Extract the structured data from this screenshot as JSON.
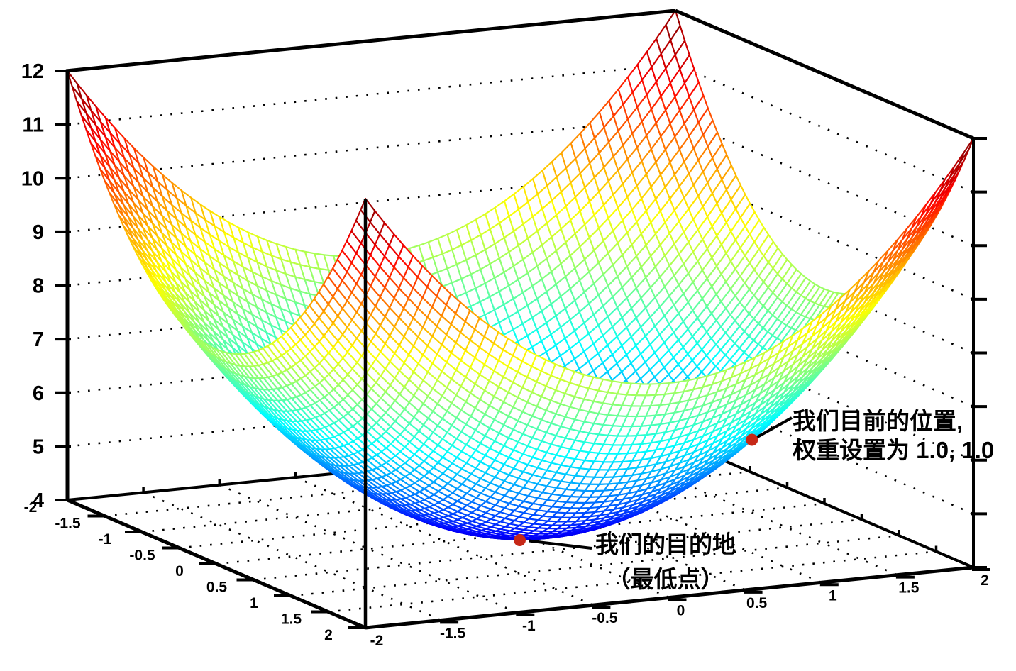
{
  "chart_data": {
    "type": "surface",
    "title": "",
    "surface": {
      "formula": "z = 4 + x^2 + y^2",
      "z_min": 4,
      "grid_divisions": 64,
      "colormap": "jet (blue = low z, red = high z)",
      "style": "hidden-line wireframe with white faces",
      "face_color": "#ffffff"
    },
    "x_axis": {
      "range": [
        -2,
        2
      ],
      "tick_values": [
        -2,
        -1.5,
        -1,
        -0.5,
        0,
        0.5,
        1,
        1.5,
        2
      ],
      "tick_labels": [
        "-2",
        "-1.5",
        "-1",
        "-0.5",
        "0",
        "0.5",
        "1",
        "1.5",
        "2"
      ]
    },
    "y_axis": {
      "range": [
        -2,
        2
      ],
      "tick_values": [
        -2,
        -1.5,
        -1,
        -0.5,
        0,
        0.5,
        1,
        1.5,
        2
      ],
      "tick_labels": [
        "-2",
        "-1.5",
        "-1",
        "-0.5",
        "0",
        "0.5",
        "1",
        "1.5",
        "2"
      ]
    },
    "z_axis": {
      "range": [
        4,
        12
      ],
      "tick_values": [
        4,
        5,
        6,
        7,
        8,
        9,
        10,
        11,
        12
      ],
      "tick_labels": [
        "4",
        "5",
        "6",
        "7",
        "8",
        "9",
        "10",
        "11",
        "12"
      ]
    },
    "grid": "dotted",
    "background": "#ffffff",
    "axis_color": "#000000",
    "markers": [
      {
        "id": "current-position",
        "x": 1.0,
        "y": 1.0,
        "z": 6.0,
        "label_lines": [
          "我们目前的位置,",
          "权重设置为 1.0, 1.0"
        ],
        "color": "#c62817"
      },
      {
        "id": "destination",
        "x": 0.0,
        "y": 0.0,
        "z": 4.0,
        "label_lines": [
          "我们的目的地",
          "（最低点）"
        ],
        "color": "#c62817"
      }
    ]
  }
}
